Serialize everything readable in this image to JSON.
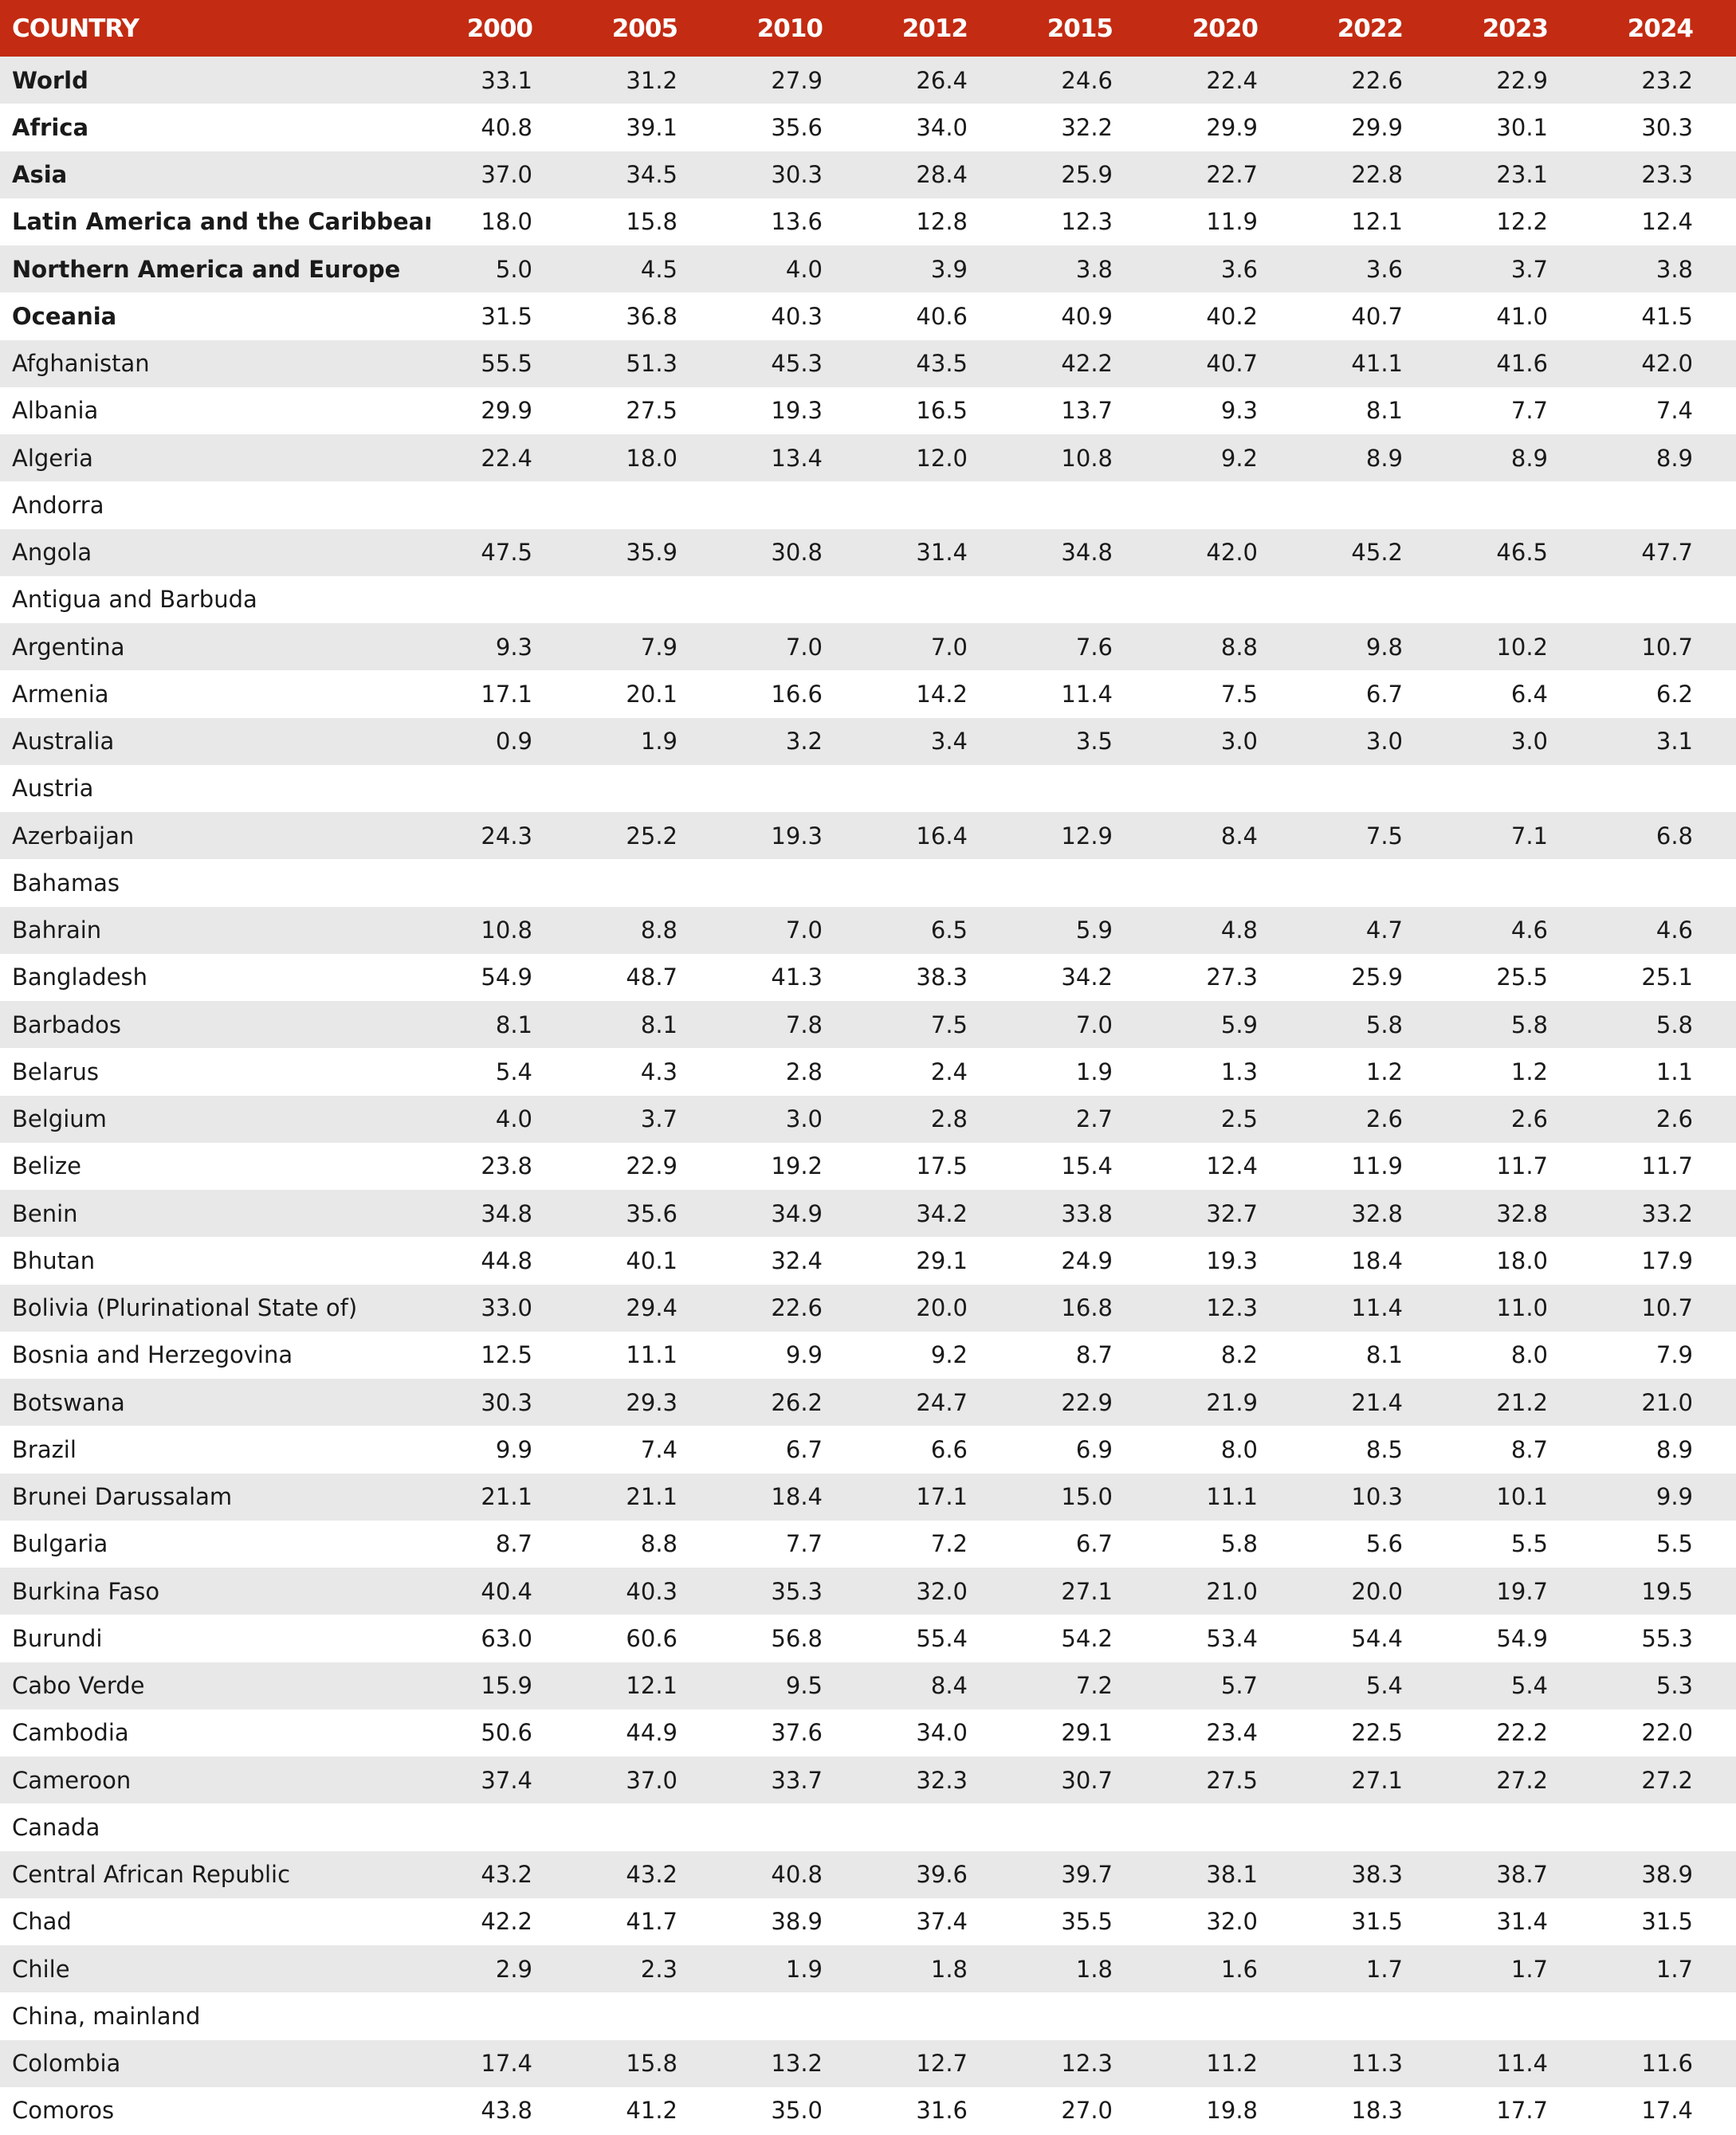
{
  "table": {
    "header": [
      "COUNTRY",
      "2000",
      "2005",
      "2010",
      "2012",
      "2015",
      "2020",
      "2022",
      "2023",
      "2024"
    ],
    "rows": [
      {
        "country": "World",
        "values": [
          "33.1",
          "31.2",
          "27.9",
          "26.4",
          "24.6",
          "22.4",
          "22.6",
          "22.9",
          "23.2"
        ]
      },
      {
        "country": "Africa",
        "values": [
          "40.8",
          "39.1",
          "35.6",
          "34.0",
          "32.2",
          "29.9",
          "29.9",
          "30.1",
          "30.3"
        ]
      },
      {
        "country": "Asia",
        "values": [
          "37.0",
          "34.5",
          "30.3",
          "28.4",
          "25.9",
          "22.7",
          "22.8",
          "23.1",
          "23.3"
        ]
      },
      {
        "country": "Latin America and the Caribbean",
        "values": [
          "18.0",
          "15.8",
          "13.6",
          "12.8",
          "12.3",
          "11.9",
          "12.1",
          "12.2",
          "12.4"
        ]
      },
      {
        "country": "Northern America and Europe",
        "values": [
          "5.0",
          "4.5",
          "4.0",
          "3.9",
          "3.8",
          "3.6",
          "3.6",
          "3.7",
          "3.8"
        ]
      },
      {
        "country": "Oceania",
        "values": [
          "31.5",
          "36.8",
          "40.3",
          "40.6",
          "40.9",
          "40.2",
          "40.7",
          "41.0",
          "41.5"
        ]
      },
      {
        "country": "Afghanistan",
        "values": [
          "55.5",
          "51.3",
          "45.3",
          "43.5",
          "42.2",
          "40.7",
          "41.1",
          "41.6",
          "42.0"
        ]
      },
      {
        "country": "Albania",
        "values": [
          "29.9",
          "27.5",
          "19.3",
          "16.5",
          "13.7",
          "9.3",
          "8.1",
          "7.7",
          "7.4"
        ]
      },
      {
        "country": "Algeria",
        "values": [
          "22.4",
          "18.0",
          "13.4",
          "12.0",
          "10.8",
          "9.2",
          "8.9",
          "8.9",
          "8.9"
        ]
      },
      {
        "country": "Andorra",
        "values": [
          null,
          null,
          null,
          null,
          null,
          null,
          null,
          null,
          null
        ]
      },
      {
        "country": "Angola",
        "values": [
          "47.5",
          "35.9",
          "30.8",
          "31.4",
          "34.8",
          "42.0",
          "45.2",
          "46.5",
          "47.7"
        ]
      },
      {
        "country": "Antigua and Barbuda",
        "values": [
          null,
          null,
          null,
          null,
          null,
          null,
          null,
          null,
          null
        ]
      },
      {
        "country": "Argentina",
        "values": [
          "9.3",
          "7.9",
          "7.0",
          "7.0",
          "7.6",
          "8.8",
          "9.8",
          "10.2",
          "10.7"
        ]
      },
      {
        "country": "Armenia",
        "values": [
          "17.1",
          "20.1",
          "16.6",
          "14.2",
          "11.4",
          "7.5",
          "6.7",
          "6.4",
          "6.2"
        ]
      },
      {
        "country": "Australia",
        "values": [
          "0.9",
          "1.9",
          "3.2",
          "3.4",
          "3.5",
          "3.0",
          "3.0",
          "3.0",
          "3.1"
        ]
      },
      {
        "country": "Austria",
        "values": [
          null,
          null,
          null,
          null,
          null,
          null,
          null,
          null,
          null
        ]
      },
      {
        "country": "Azerbaijan",
        "values": [
          "24.3",
          "25.2",
          "19.3",
          "16.4",
          "12.9",
          "8.4",
          "7.5",
          "7.1",
          "6.8"
        ]
      },
      {
        "country": "Bahamas",
        "values": [
          null,
          null,
          null,
          null,
          null,
          null,
          null,
          null,
          null
        ]
      },
      {
        "country": "Bahrain",
        "values": [
          "10.8",
          "8.8",
          "7.0",
          "6.5",
          "5.9",
          "4.8",
          "4.7",
          "4.6",
          "4.6"
        ]
      },
      {
        "country": "Bangladesh",
        "values": [
          "54.9",
          "48.7",
          "41.3",
          "38.3",
          "34.2",
          "27.3",
          "25.9",
          "25.5",
          "25.1"
        ]
      },
      {
        "country": "Barbados",
        "values": [
          "8.1",
          "8.1",
          "7.8",
          "7.5",
          "7.0",
          "5.9",
          "5.8",
          "5.8",
          "5.8"
        ]
      },
      {
        "country": "Belarus",
        "values": [
          "5.4",
          "4.3",
          "2.8",
          "2.4",
          "1.9",
          "1.3",
          "1.2",
          "1.2",
          "1.1"
        ]
      },
      {
        "country": "Belgium",
        "values": [
          "4.0",
          "3.7",
          "3.0",
          "2.8",
          "2.7",
          "2.5",
          "2.6",
          "2.6",
          "2.6"
        ]
      },
      {
        "country": "Belize",
        "values": [
          "23.8",
          "22.9",
          "19.2",
          "17.5",
          "15.4",
          "12.4",
          "11.9",
          "11.7",
          "11.7"
        ]
      },
      {
        "country": "Benin",
        "values": [
          "34.8",
          "35.6",
          "34.9",
          "34.2",
          "33.8",
          "32.7",
          "32.8",
          "32.8",
          "33.2"
        ]
      },
      {
        "country": "Bhutan",
        "values": [
          "44.8",
          "40.1",
          "32.4",
          "29.1",
          "24.9",
          "19.3",
          "18.4",
          "18.0",
          "17.9"
        ]
      },
      {
        "country": "Bolivia (Plurinational State of)",
        "values": [
          "33.0",
          "29.4",
          "22.6",
          "20.0",
          "16.8",
          "12.3",
          "11.4",
          "11.0",
          "10.7"
        ]
      },
      {
        "country": "Bosnia and Herzegovina",
        "values": [
          "12.5",
          "11.1",
          "9.9",
          "9.2",
          "8.7",
          "8.2",
          "8.1",
          "8.0",
          "7.9"
        ]
      },
      {
        "country": "Botswana",
        "values": [
          "30.3",
          "29.3",
          "26.2",
          "24.7",
          "22.9",
          "21.9",
          "21.4",
          "21.2",
          "21.0"
        ]
      },
      {
        "country": "Brazil",
        "values": [
          "9.9",
          "7.4",
          "6.7",
          "6.6",
          "6.9",
          "8.0",
          "8.5",
          "8.7",
          "8.9"
        ]
      },
      {
        "country": "Brunei Darussalam",
        "values": [
          "21.1",
          "21.1",
          "18.4",
          "17.1",
          "15.0",
          "11.1",
          "10.3",
          "10.1",
          "9.9"
        ]
      },
      {
        "country": "Bulgaria",
        "values": [
          "8.7",
          "8.8",
          "7.7",
          "7.2",
          "6.7",
          "5.8",
          "5.6",
          "5.5",
          "5.5"
        ]
      },
      {
        "country": "Burkina Faso",
        "values": [
          "40.4",
          "40.3",
          "35.3",
          "32.0",
          "27.1",
          "21.0",
          "20.0",
          "19.7",
          "19.5"
        ]
      },
      {
        "country": "Burundi",
        "values": [
          "63.0",
          "60.6",
          "56.8",
          "55.4",
          "54.2",
          "53.4",
          "54.4",
          "54.9",
          "55.3"
        ]
      },
      {
        "country": "Cabo Verde",
        "values": [
          "15.9",
          "12.1",
          "9.5",
          "8.4",
          "7.2",
          "5.7",
          "5.4",
          "5.4",
          "5.3"
        ]
      },
      {
        "country": "Cambodia",
        "values": [
          "50.6",
          "44.9",
          "37.6",
          "34.0",
          "29.1",
          "23.4",
          "22.5",
          "22.2",
          "22.0"
        ]
      },
      {
        "country": "Cameroon",
        "values": [
          "37.4",
          "37.0",
          "33.7",
          "32.3",
          "30.7",
          "27.5",
          "27.1",
          "27.2",
          "27.2"
        ]
      },
      {
        "country": "Canada",
        "values": [
          null,
          null,
          null,
          null,
          null,
          null,
          null,
          null,
          null
        ]
      },
      {
        "country": "Central African Republic",
        "values": [
          "43.2",
          "43.2",
          "40.8",
          "39.6",
          "39.7",
          "38.1",
          "38.3",
          "38.7",
          "38.9"
        ]
      },
      {
        "country": "Chad",
        "values": [
          "42.2",
          "41.7",
          "38.9",
          "37.4",
          "35.5",
          "32.0",
          "31.5",
          "31.4",
          "31.5"
        ]
      },
      {
        "country": "Chile",
        "values": [
          "2.9",
          "2.3",
          "1.9",
          "1.8",
          "1.8",
          "1.6",
          "1.7",
          "1.7",
          "1.7"
        ]
      },
      {
        "country": "China, mainland",
        "values": [
          null,
          null,
          null,
          null,
          null,
          null,
          null,
          null,
          null
        ]
      },
      {
        "country": "Colombia",
        "values": [
          "17.4",
          "15.8",
          "13.2",
          "12.7",
          "12.3",
          "11.2",
          "11.3",
          "11.4",
          "11.6"
        ]
      },
      {
        "country": "Comoros",
        "values": [
          "43.8",
          "41.2",
          "35.0",
          "31.6",
          "27.0",
          "19.8",
          "18.3",
          "17.7",
          "17.4"
        ]
      }
    ]
  }
}
